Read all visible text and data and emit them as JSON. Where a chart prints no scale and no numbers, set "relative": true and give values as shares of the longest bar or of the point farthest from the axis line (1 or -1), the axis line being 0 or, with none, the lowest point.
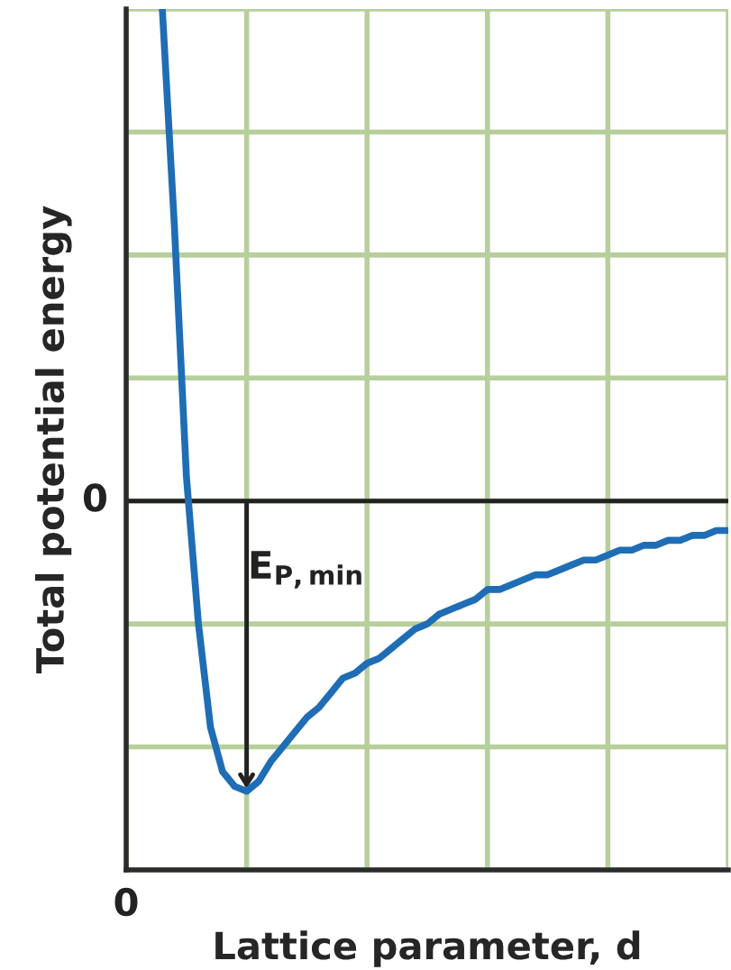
{
  "chart_data": {
    "type": "line",
    "relative": true,
    "xlabel": "Lattice parameter, d",
    "ylabel": "Total potential energy",
    "categories": [
      null,
      null,
      null,
      null,
      null,
      null,
      null,
      null,
      null,
      null,
      null,
      null,
      null,
      null,
      null,
      null,
      null,
      null,
      null,
      null,
      null,
      null,
      null,
      null,
      null,
      null,
      null,
      null,
      null,
      null,
      null,
      null,
      null,
      null,
      null,
      null,
      null,
      null,
      null,
      null,
      null,
      null,
      null,
      null,
      null,
      null,
      null,
      null,
      null,
      null,
      null
    ],
    "series": [
      {
        "color": "#1f6db5",
        "values": [
          null,
          null,
          null,
          1.0,
          0.56,
          0.05,
          -0.25,
          -0.46,
          -0.55,
          -0.58,
          -0.59,
          -0.57,
          -0.53,
          -0.5,
          -0.47,
          -0.44,
          -0.42,
          -0.39,
          -0.36,
          -0.35,
          -0.33,
          -0.32,
          -0.3,
          -0.28,
          -0.26,
          -0.25,
          -0.23,
          -0.22,
          -0.21,
          -0.2,
          -0.18,
          -0.18,
          -0.17,
          -0.16,
          -0.15,
          -0.15,
          -0.14,
          -0.13,
          -0.12,
          -0.12,
          -0.11,
          -0.1,
          -0.1,
          -0.09,
          -0.09,
          -0.08,
          -0.08,
          -0.07,
          -0.07,
          -0.06,
          -0.06
        ]
      }
    ],
    "annotations": [
      "E$_{P,min}$",
      "0",
      "0"
    ],
    "grid": true,
    "marker": "none",
    "line_style": "solid",
    "legend": false
  }
}
